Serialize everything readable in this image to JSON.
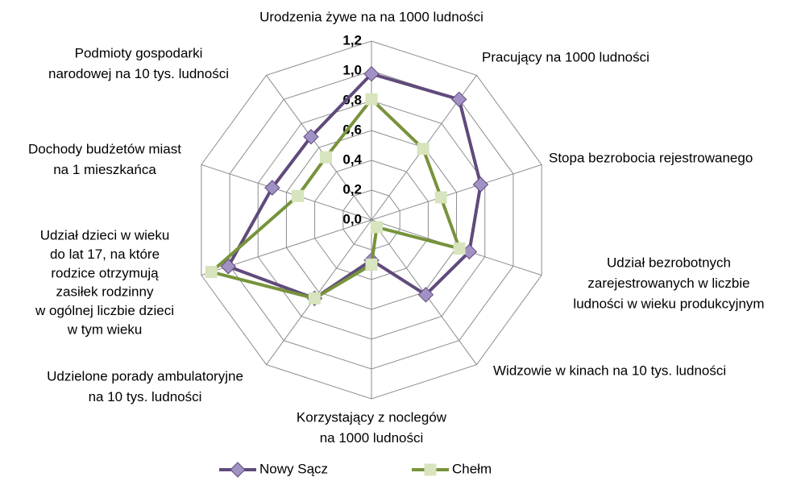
{
  "chart_data": {
    "type": "radar",
    "categories": [
      [
        "Urodzenia żywe na na 1000 ludności"
      ],
      [
        "Pracujący na 1000 ludności"
      ],
      [
        "Stopa bezrobocia rejestrowanego"
      ],
      [
        "Udział bezrobotnych",
        "zarejestrowanych w liczbie",
        "ludności w wieku produkcyjnym"
      ],
      [
        "Widzowie w kinach na 10 tys. ludności"
      ],
      [
        "Korzystający z noclegów",
        "na 1000 ludności"
      ],
      [
        "Udzielone porady ambulatoryjne",
        "na 10 tys. ludności"
      ],
      [
        "Udział dzieci w wieku",
        "do lat 17, na które",
        "rodzice otrzymują",
        "zasiłek rodzinny",
        "w ogólnej liczbie dzieci",
        "w tym wieku"
      ],
      [
        "Dochody budżetów miast",
        "na 1 mieszkańca"
      ],
      [
        "Podmioty gospodarki",
        "narodowej na 10 tys. ludności"
      ]
    ],
    "series": [
      {
        "name": "Nowy Sącz",
        "color": "#604a7b",
        "marker_color": "#a291c4",
        "marker": "diamond",
        "values": [
          0.98,
          1.0,
          0.77,
          0.69,
          0.62,
          0.27,
          0.65,
          1.01,
          0.7,
          0.69
        ]
      },
      {
        "name": "Chełm",
        "color": "#77933c",
        "marker_color": "#d7e4bd",
        "marker": "square",
        "values": [
          0.81,
          0.59,
          0.49,
          0.62,
          0.06,
          0.3,
          0.65,
          1.13,
          0.52,
          0.52
        ]
      }
    ],
    "ylim": [
      0,
      1.2
    ],
    "yticks": [
      {
        "value": 0,
        "label": "0,0"
      },
      {
        "value": 0.2,
        "label": "0,2"
      },
      {
        "value": 0.4,
        "label": "0,4"
      },
      {
        "value": 0.6,
        "label": "0,6"
      },
      {
        "value": 0.8,
        "label": "0,8"
      },
      {
        "value": 1.0,
        "label": "1,0"
      },
      {
        "value": 1.2,
        "label": "1,2"
      }
    ],
    "grid": true,
    "legend": "bottom"
  }
}
